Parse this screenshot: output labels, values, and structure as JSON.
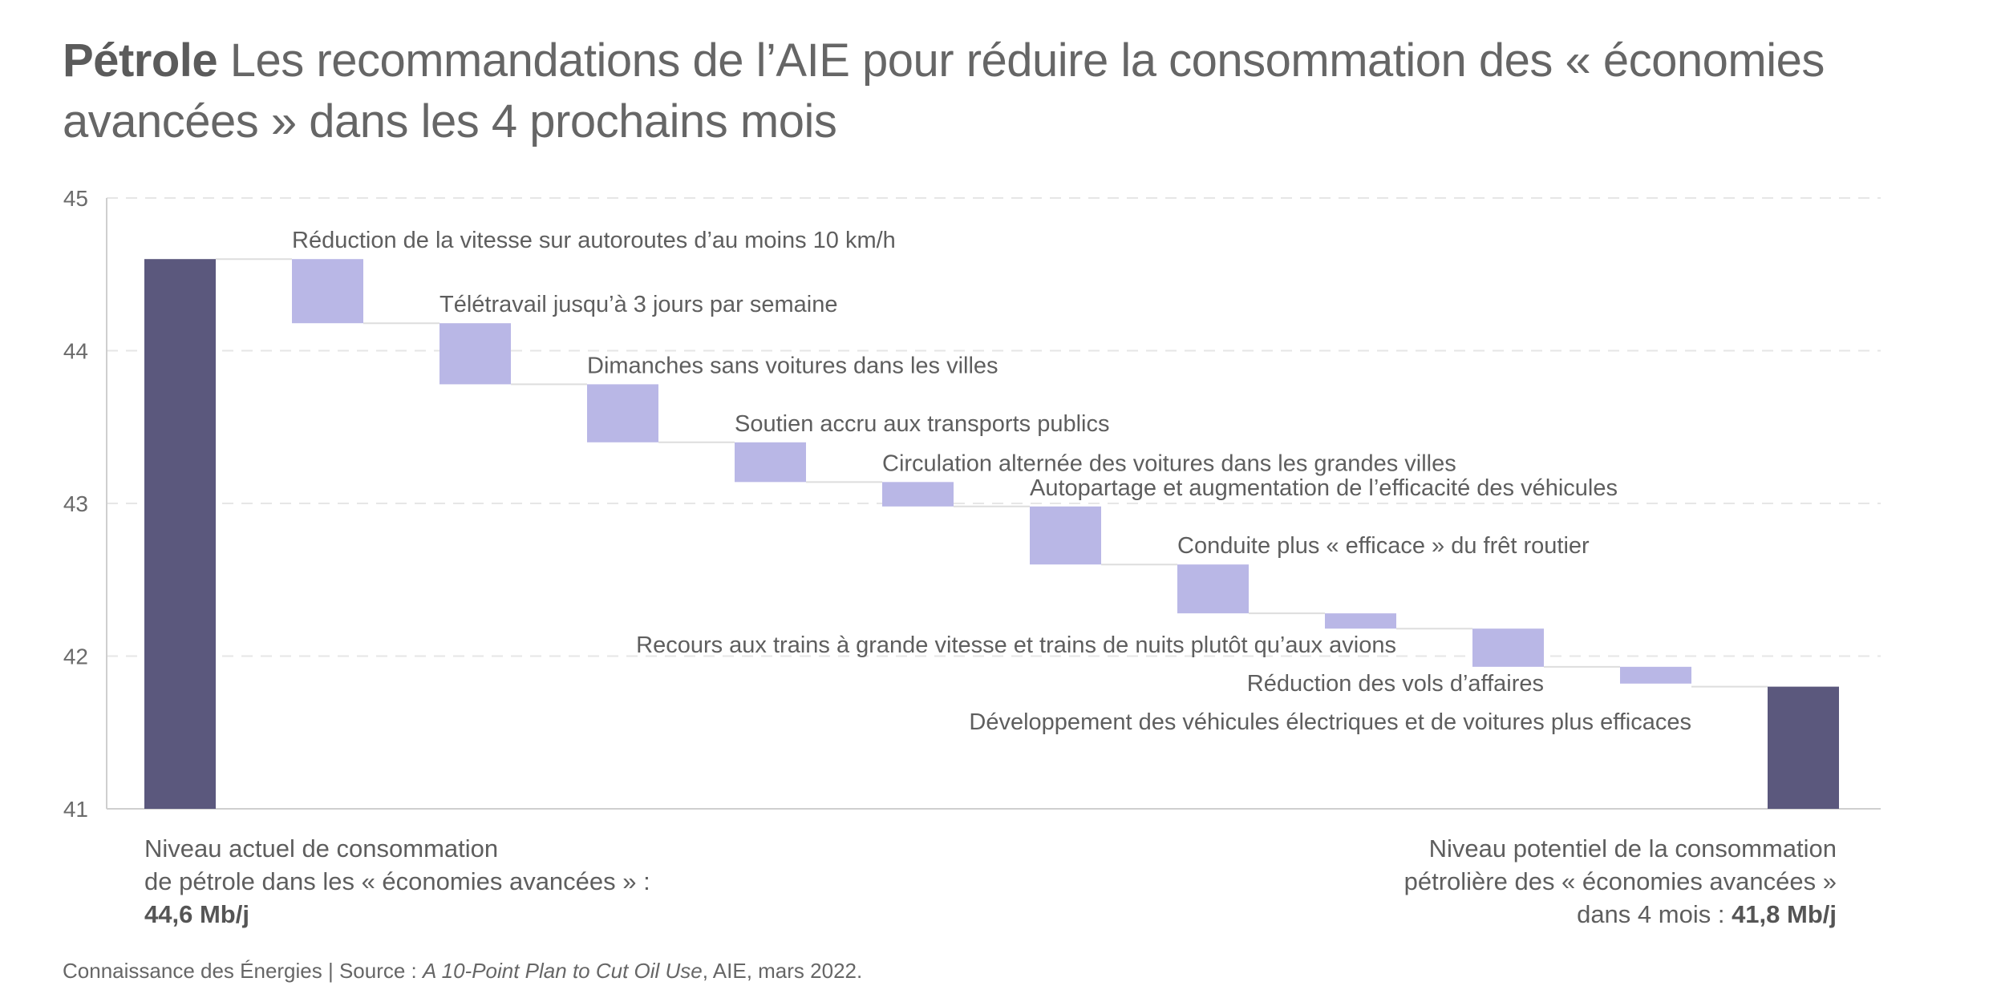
{
  "title": {
    "bold": "Pétrole",
    "rest": " Les recommandations de l’AIE pour réduire la consommation des « économies avancées » dans les 4 prochains mois"
  },
  "chart_data": {
    "type": "waterfall",
    "ylim": [
      41,
      45
    ],
    "yticks": [
      "41",
      "42",
      "43",
      "44",
      "45"
    ],
    "grid": true,
    "start": {
      "value": 44.6
    },
    "end": {
      "value": 41.8
    },
    "steps": [
      {
        "label": "Réduction de la vitesse sur autoroutes d’au moins 10 km/h",
        "from": 44.6,
        "to": 44.18,
        "label_side": "right"
      },
      {
        "label": "Télétravail jusqu’à 3 jours par semaine",
        "from": 44.18,
        "to": 43.78,
        "label_side": "right"
      },
      {
        "label": "Dimanches sans voitures dans les villes",
        "from": 43.78,
        "to": 43.4,
        "label_side": "right"
      },
      {
        "label": "Soutien accru aux transports publics",
        "from": 43.4,
        "to": 43.14,
        "label_side": "right"
      },
      {
        "label": "Circulation alternée des voitures dans les grandes villes",
        "from": 43.14,
        "to": 42.98,
        "label_side": "right"
      },
      {
        "label": "Autopartage et augmentation de l’efficacité des véhicules",
        "from": 42.98,
        "to": 42.6,
        "label_side": "right"
      },
      {
        "label": "Conduite plus « efficace » du frêt routier",
        "from": 42.6,
        "to": 42.28,
        "label_side": "right"
      },
      {
        "label": "Recours aux trains à grande vitesse et trains de nuits plutôt qu’aux avions",
        "from": 42.28,
        "to": 42.18,
        "label_side": "left"
      },
      {
        "label": "Réduction des vols d’affaires",
        "from": 42.18,
        "to": 41.93,
        "label_side": "left"
      },
      {
        "label": "Développement des véhicules électriques et de voitures plus efficaces",
        "from": 41.93,
        "to": 41.82,
        "label_side": "left"
      }
    ],
    "colors": {
      "total": "#5b587d",
      "step": "#b9b7e6",
      "connector": "#dddddd",
      "grid": "#e6e6e6",
      "axis": "#cfcfcf",
      "text": "#5e5e5e"
    }
  },
  "footer": {
    "left_line1": "Niveau actuel de consommation",
    "left_line2": "de pétrole dans les « économies avancées » :",
    "left_value": "44,6 Mb/j",
    "right_line1": "Niveau potentiel de la consommation",
    "right_line2": "pétrolière des « économies avancées »",
    "right_line3_prefix": "dans 4 mois : ",
    "right_value": "41,8 Mb/j"
  },
  "source": {
    "prefix": "Connaissance des Énergies | Source : ",
    "italic": "A 10-Point Plan to Cut Oil Use",
    "suffix": ", AIE, mars 2022."
  }
}
